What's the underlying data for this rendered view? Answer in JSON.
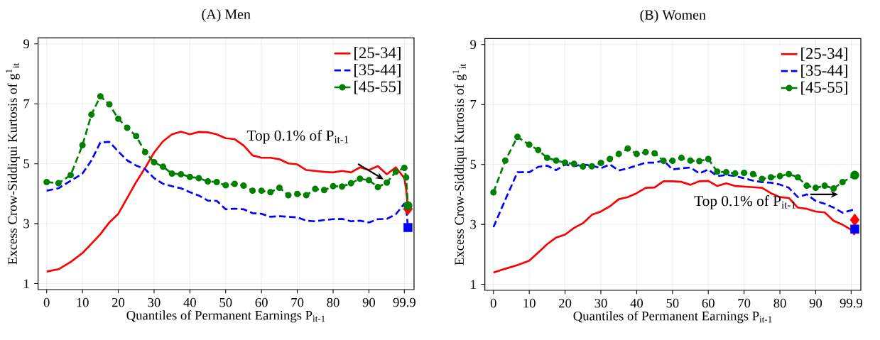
{
  "chart_data": [
    {
      "type": "line",
      "title": "(A) Men",
      "xlabel": "Quantiles of Permanent Earnings P$_{it-1}$",
      "ylabel": "Excess Crow-Siddiqui Kurtosis of g$^{1}$$_{it}$",
      "annotations": [
        "Top 0.1% of P$_{it-1}$"
      ],
      "xlim": [
        -2.4,
        102.6
      ],
      "ylim": [
        0.8,
        9.2
      ],
      "xticks": [
        0,
        10,
        20,
        30,
        40,
        50,
        60,
        70,
        80,
        90,
        99.9
      ],
      "yticks": [
        1,
        3,
        5,
        7,
        9
      ],
      "grid": true,
      "legend": "top right",
      "series": [
        {
          "name": "[25-34]",
          "color": "#ff0000",
          "line_style": "solid",
          "marker": "none",
          "x": [
            0,
            3.3,
            6.7,
            10,
            12.5,
            15,
            17.5,
            20,
            22.5,
            25,
            27.5,
            30,
            32.5,
            35,
            37.5,
            40,
            42.5,
            45,
            47.5,
            50,
            52.5,
            55,
            57.5,
            60,
            62.5,
            65,
            67.5,
            70,
            72.5,
            75,
            77.5,
            80,
            82.5,
            85,
            87.5,
            90,
            92.5,
            95,
            97.5,
            99.9,
            100.4,
            100.9
          ],
          "values": [
            1.4,
            1.48,
            1.72,
            2.02,
            2.33,
            2.65,
            3.04,
            3.33,
            3.86,
            4.39,
            4.86,
            5.37,
            5.75,
            5.98,
            6.07,
            5.98,
            6.06,
            6.05,
            5.98,
            5.85,
            5.82,
            5.61,
            5.28,
            5.2,
            5.2,
            5.15,
            5.01,
            4.98,
            4.79,
            4.76,
            4.73,
            4.71,
            4.76,
            4.71,
            4.88,
            4.79,
            4.92,
            4.65,
            4.88,
            4.52,
            4.14,
            3.49
          ]
        },
        {
          "name": "[35-44]",
          "color": "#0000ff",
          "line_style": "dashed",
          "marker": "none",
          "x": [
            0,
            3.3,
            6.7,
            10,
            12.5,
            15,
            17.5,
            20,
            22.5,
            25,
            27.5,
            30,
            32.5,
            35,
            37.5,
            40,
            42.5,
            45,
            47.5,
            50,
            52.5,
            55,
            57.5,
            60,
            62.5,
            65,
            67.5,
            70,
            72.5,
            75,
            77.5,
            80,
            82.5,
            85,
            87.5,
            90,
            92.5,
            95,
            97.5,
            99.9,
            100.4,
            100.9
          ],
          "values": [
            4.1,
            4.18,
            4.43,
            4.67,
            5.11,
            5.71,
            5.73,
            5.41,
            5.11,
            4.94,
            4.82,
            4.52,
            4.33,
            4.25,
            4.18,
            4.05,
            3.94,
            3.77,
            3.76,
            3.48,
            3.5,
            3.48,
            3.35,
            3.33,
            3.23,
            3.25,
            3.23,
            3.21,
            3.1,
            3.08,
            3.12,
            3.15,
            3.16,
            3.08,
            3.1,
            3.04,
            3.15,
            3.16,
            3.31,
            3.67,
            3.54,
            2.87
          ]
        },
        {
          "name": "[45-55]",
          "color": "#008000",
          "line_style": "dashed",
          "marker": "circle",
          "x": [
            0,
            3.3,
            6.7,
            10,
            12.5,
            15,
            17.5,
            20,
            22.5,
            25,
            27.5,
            30,
            32.5,
            35,
            37.5,
            40,
            42.5,
            45,
            47.5,
            50,
            52.5,
            55,
            57.5,
            60,
            62.5,
            65,
            67.5,
            70,
            72.5,
            75,
            77.5,
            80,
            82.5,
            85,
            87.5,
            90,
            92.5,
            95,
            97.5,
            99.9,
            100.4,
            100.9
          ],
          "values": [
            4.39,
            4.35,
            4.62,
            5.62,
            6.64,
            7.25,
            6.98,
            6.5,
            6.2,
            5.92,
            5.39,
            5.05,
            4.9,
            4.67,
            4.65,
            4.56,
            4.52,
            4.41,
            4.39,
            4.28,
            4.33,
            4.27,
            4.1,
            4.1,
            4.05,
            4.2,
            3.95,
            3.99,
            3.95,
            4.16,
            4.12,
            4.25,
            4.24,
            4.35,
            4.5,
            4.45,
            4.22,
            4.37,
            4.73,
            4.86,
            4.54,
            3.6
          ]
        },
        {
          "type": "scatter",
          "color": "#ff0000",
          "marker": "diamond",
          "x": [
            100.9
          ],
          "values": [
            3.49
          ]
        },
        {
          "type": "scatter",
          "color": "#0000ff",
          "marker": "square",
          "x": [
            100.9
          ],
          "values": [
            2.87
          ]
        },
        {
          "type": "scatter",
          "color": "#008000",
          "marker": "circle",
          "x": [
            100.9
          ],
          "values": [
            3.6
          ]
        }
      ]
    },
    {
      "type": "line",
      "title": "(B) Women",
      "xlabel": "Quantiles of Permanent Earnings P$_{it-1}$",
      "ylabel": "Excess Crow-Siddiqui Kurtosis of g$^{1}$$_{it}$",
      "annotations": [
        "Top 0.1% of P$_{it-1}$"
      ],
      "xlim": [
        -2.4,
        102.6
      ],
      "ylim": [
        0.8,
        9.2
      ],
      "xticks": [
        0,
        10,
        20,
        30,
        40,
        50,
        60,
        70,
        80,
        90,
        99.9
      ],
      "yticks": [
        1,
        3,
        5,
        7,
        9
      ],
      "grid": true,
      "legend": "top right",
      "series": [
        {
          "name": "[25-34]",
          "color": "#ff0000",
          "line_style": "solid",
          "marker": "none",
          "x": [
            0,
            3.3,
            6.7,
            10,
            12.5,
            15,
            17.5,
            20,
            22.5,
            25,
            27.5,
            30,
            32.5,
            35,
            37.5,
            40,
            42.5,
            45,
            47.5,
            50,
            52.5,
            55,
            57.5,
            60,
            62.5,
            65,
            67.5,
            70,
            72.5,
            75,
            77.5,
            80,
            82.5,
            85,
            87.5,
            90,
            92.5,
            95,
            97.5,
            99.9,
            100.9
          ],
          "values": [
            1.39,
            1.52,
            1.64,
            1.79,
            2.06,
            2.34,
            2.56,
            2.66,
            2.88,
            3.04,
            3.32,
            3.43,
            3.6,
            3.84,
            3.91,
            4.04,
            4.22,
            4.23,
            4.44,
            4.44,
            4.42,
            4.32,
            4.44,
            4.45,
            4.28,
            4.37,
            4.28,
            4.26,
            4.24,
            4.22,
            4.04,
            3.91,
            3.88,
            3.56,
            3.52,
            3.43,
            3.4,
            3.12,
            2.99,
            2.82,
            2.65
          ]
        },
        {
          "name": "[35-44]",
          "color": "#0000ff",
          "line_style": "dashed",
          "marker": "none",
          "x": [
            0,
            3.3,
            6.7,
            10,
            12.5,
            15,
            17.5,
            20,
            22.5,
            25,
            27.5,
            30,
            32.5,
            35,
            37.5,
            40,
            42.5,
            45,
            47.5,
            50,
            52.5,
            55,
            57.5,
            60,
            62.5,
            65,
            67.5,
            70,
            72.5,
            75,
            77.5,
            80,
            82.5,
            85,
            87.5,
            90,
            92.5,
            95,
            97.5,
            99.9,
            100.9
          ],
          "values": [
            2.91,
            3.82,
            4.74,
            4.74,
            4.92,
            4.96,
            4.81,
            5.0,
            4.94,
            5.0,
            4.96,
            4.87,
            5.0,
            4.8,
            4.87,
            4.96,
            5.06,
            5.06,
            5.13,
            4.83,
            4.87,
            4.9,
            4.7,
            4.83,
            4.61,
            4.65,
            4.61,
            4.54,
            4.46,
            4.41,
            4.39,
            4.33,
            4.22,
            3.91,
            4.0,
            3.78,
            3.69,
            3.56,
            3.39,
            3.47,
            3.5
          ]
        },
        {
          "name": "[45-55]",
          "color": "#008000",
          "line_style": "dashed",
          "marker": "circle",
          "x": [
            0,
            3.3,
            6.7,
            10,
            12.5,
            15,
            17.5,
            20,
            22.5,
            25,
            27.5,
            30,
            32.5,
            35,
            37.5,
            40,
            42.5,
            45,
            47.5,
            50,
            52.5,
            55,
            57.5,
            60,
            62.5,
            65,
            67.5,
            70,
            72.5,
            75,
            77.5,
            80,
            82.5,
            85,
            87.5,
            90,
            92.5,
            95,
            97.5,
            99.9,
            100.9
          ],
          "values": [
            4.07,
            5.13,
            5.92,
            5.66,
            5.48,
            5.22,
            5.13,
            5.06,
            5.02,
            4.93,
            4.94,
            5.05,
            5.18,
            5.35,
            5.53,
            5.35,
            5.41,
            5.37,
            5.12,
            5.12,
            5.22,
            5.13,
            5.11,
            5.18,
            4.76,
            4.74,
            4.7,
            4.72,
            4.68,
            4.52,
            4.57,
            4.61,
            4.68,
            4.57,
            4.29,
            4.22,
            4.29,
            4.2,
            4.41,
            null,
            4.64
          ]
        },
        {
          "type": "scatter",
          "color": "#ff0000",
          "marker": "diamond",
          "x": [
            100.9
          ],
          "values": [
            3.15
          ]
        },
        {
          "type": "scatter",
          "color": "#0000ff",
          "marker": "square",
          "x": [
            100.9
          ],
          "values": [
            2.84
          ]
        },
        {
          "type": "scatter",
          "color": "#008000",
          "marker": "circle",
          "x": [
            100.9
          ],
          "values": [
            4.64
          ]
        }
      ]
    }
  ]
}
